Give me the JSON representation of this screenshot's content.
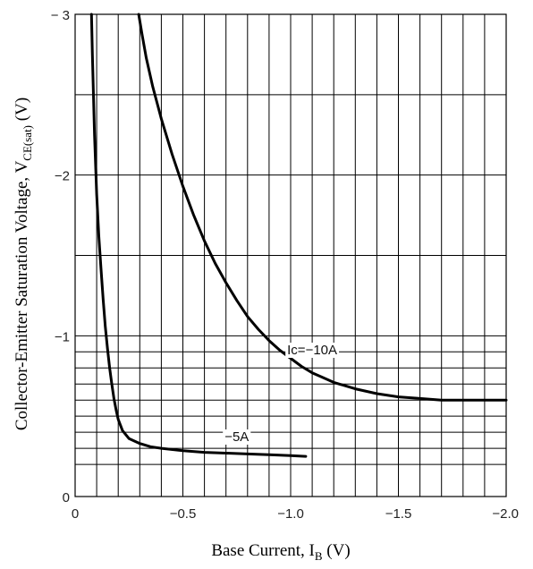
{
  "chart_data": {
    "type": "line",
    "title": "",
    "xlabel": {
      "main": "Base Current, I",
      "sub": "B",
      "unit": " (V)"
    },
    "ylabel": {
      "main": "Collector-Emitter Saturation Voltage, V",
      "sub": "CE(sat)",
      "unit": " (V)"
    },
    "xlim": [
      0,
      -2.0
    ],
    "ylim": [
      0,
      -3
    ],
    "x_ticks": [
      {
        "value": 0,
        "label": "0"
      },
      {
        "value": -0.5,
        "label": "−0.5"
      },
      {
        "value": -1.0,
        "label": "−1.0"
      },
      {
        "value": -1.5,
        "label": "−1.5"
      },
      {
        "value": -2.0,
        "label": "−2.0"
      }
    ],
    "y_ticks": [
      {
        "value": 0,
        "label": "0"
      },
      {
        "value": -1,
        "label": "−1"
      },
      {
        "value": -2,
        "label": "−2"
      },
      {
        "value": -3,
        "label": "− 3"
      }
    ],
    "x_grid": [
      -0.1,
      -0.2,
      -0.3,
      -0.4,
      -0.5,
      -0.6,
      -0.7,
      -0.8,
      -0.9,
      -1.0,
      -1.1,
      -1.2,
      -1.3,
      -1.4,
      -1.5,
      -1.6,
      -1.7,
      -1.8,
      -1.9
    ],
    "y_grid": [
      -0.2,
      -0.3,
      -0.4,
      -0.5,
      -0.6,
      -0.7,
      -0.8,
      -0.9,
      -1.0,
      -1.5,
      -2.0,
      -2.5
    ],
    "grid": true,
    "series": [
      {
        "name": "Ic=−10A",
        "label_x": -1.1,
        "label_y": -0.885,
        "x": [
          -0.295,
          -0.31,
          -0.33,
          -0.36,
          -0.4,
          -0.45,
          -0.5,
          -0.55,
          -0.6,
          -0.65,
          -0.7,
          -0.75,
          -0.8,
          -0.85,
          -0.9,
          -0.95,
          -1.0,
          -1.05,
          -1.1,
          -1.15,
          -1.2,
          -1.3,
          -1.4,
          -1.5,
          -1.6,
          -1.7,
          -1.8,
          -1.9,
          -2.0
        ],
        "y": [
          -3.0,
          -2.88,
          -2.73,
          -2.55,
          -2.35,
          -2.13,
          -1.93,
          -1.75,
          -1.59,
          -1.45,
          -1.33,
          -1.22,
          -1.12,
          -1.04,
          -0.97,
          -0.91,
          -0.86,
          -0.81,
          -0.77,
          -0.74,
          -0.71,
          -0.67,
          -0.64,
          -0.62,
          -0.61,
          -0.6,
          -0.6,
          -0.6,
          -0.6
        ]
      },
      {
        "name": "−5A",
        "label_x": -0.75,
        "label_y": -0.345,
        "x": [
          -0.076,
          -0.08,
          -0.085,
          -0.09,
          -0.1,
          -0.11,
          -0.12,
          -0.13,
          -0.14,
          -0.15,
          -0.16,
          -0.17,
          -0.18,
          -0.19,
          -0.2,
          -0.22,
          -0.25,
          -0.3,
          -0.35,
          -0.4,
          -0.5,
          -0.6,
          -0.7,
          -0.8,
          -0.9,
          -1.0,
          -1.07
        ],
        "y": [
          -3.0,
          -2.75,
          -2.5,
          -2.25,
          -1.88,
          -1.62,
          -1.42,
          -1.23,
          -1.06,
          -0.92,
          -0.8,
          -0.7,
          -0.61,
          -0.54,
          -0.48,
          -0.41,
          -0.36,
          -0.33,
          -0.31,
          -0.3,
          -0.285,
          -0.275,
          -0.27,
          -0.265,
          -0.26,
          -0.255,
          -0.25
        ]
      }
    ]
  }
}
